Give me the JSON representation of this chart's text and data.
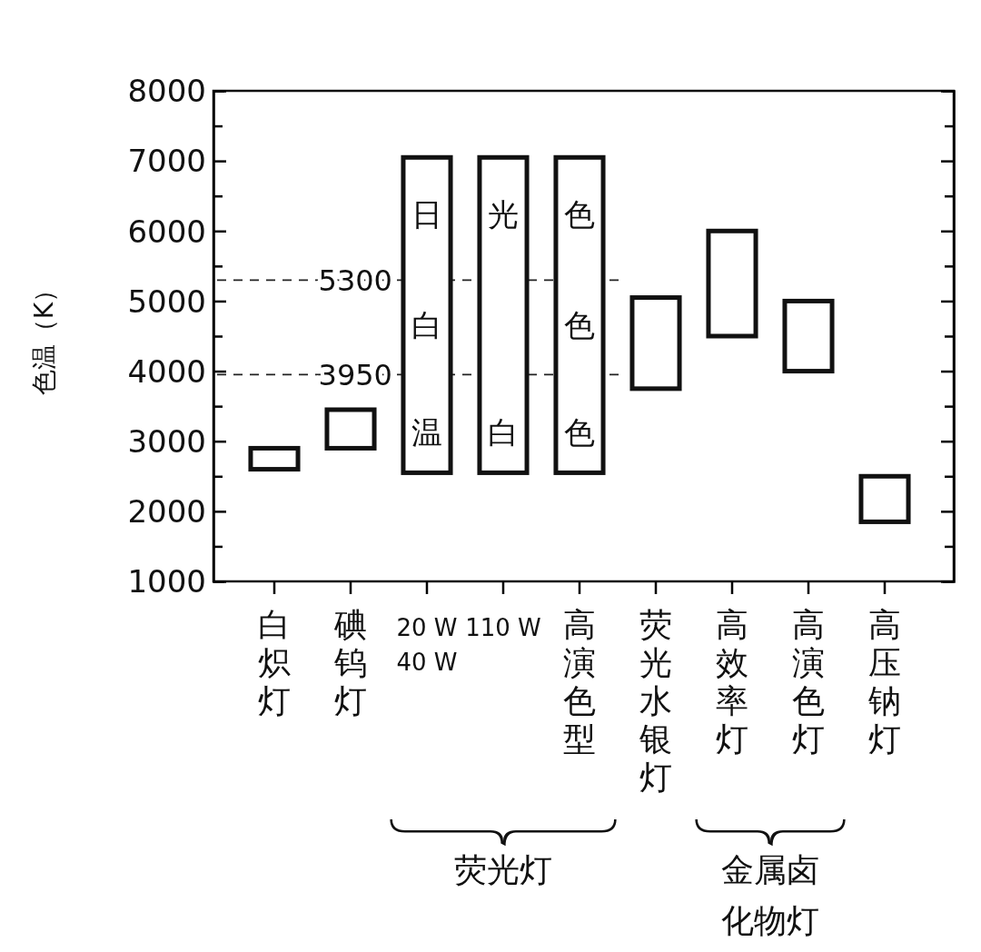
{
  "chart_data": {
    "type": "bar",
    "ylabel": "色温（K）",
    "categories": [
      "白炽灯",
      "碘钨灯",
      "20 W\n40 W",
      "110 W",
      "高演色型",
      "荧光水银灯",
      "高效率灯",
      "高演色灯",
      "高压钠灯"
    ],
    "base": [
      2600,
      2900,
      2550,
      2550,
      2550,
      3750,
      4500,
      4000,
      1850
    ],
    "values": [
      300,
      550,
      4500,
      4500,
      4500,
      1300,
      1500,
      1000,
      650
    ],
    "color": "#ffffff",
    "ylim": [
      1000,
      8000
    ],
    "yticks": [
      1000,
      {
        "value": 1500,
        "label": null
      },
      2000,
      {
        "value": 2500,
        "label": null
      },
      3000,
      {
        "value": 3500,
        "label": null
      },
      4000,
      {
        "value": 4500,
        "label": null
      },
      5000,
      {
        "value": 5500,
        "label": null
      },
      6000,
      {
        "value": 6500,
        "label": null
      },
      7000,
      {
        "value": 7500,
        "label": null
      },
      8000
    ],
    "ref_lines": [
      {
        "axis": "y",
        "value": 5300,
        "label": "5300",
        "line_style": "dashed"
      },
      {
        "axis": "y",
        "value": 3950,
        "label": "3950",
        "line_style": "dashed"
      }
    ],
    "annotations": [
      "日",
      "光",
      "色",
      "白",
      "色",
      "温",
      "白",
      "色",
      "荧光灯",
      "金属卤化物灯"
    ]
  }
}
